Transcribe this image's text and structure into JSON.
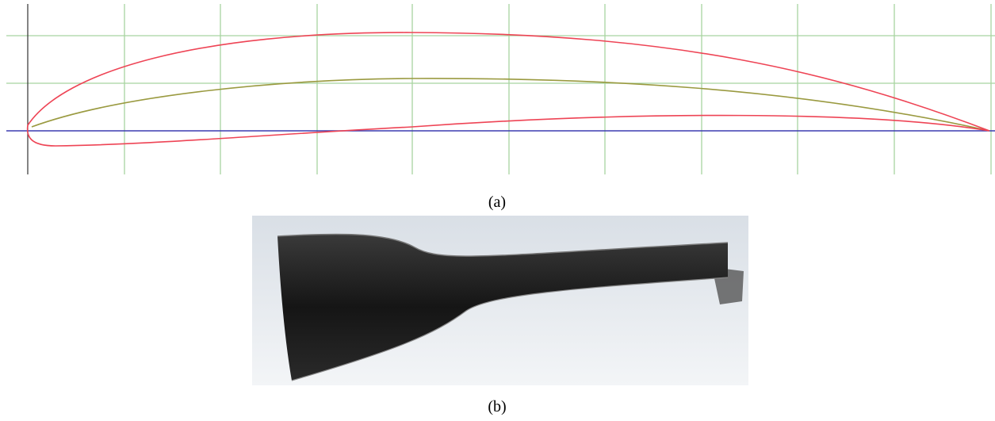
{
  "figure_a": {
    "caption": "(a)"
  },
  "figure_b": {
    "caption": "(b)"
  }
}
